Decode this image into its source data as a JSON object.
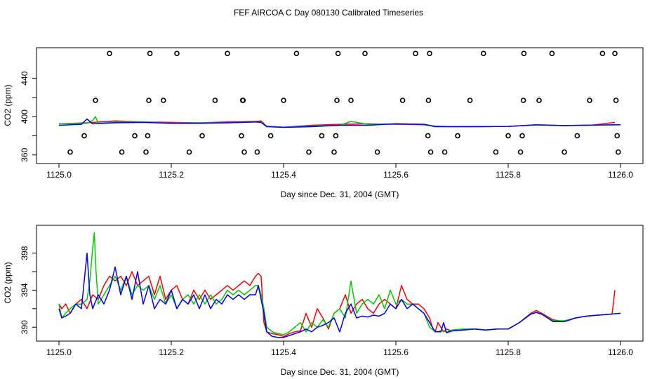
{
  "figure_title": "FEF AIRCOA C  Day 080130  Calibrated Timeseries",
  "chart_data": [
    {
      "type": "scatter+line",
      "xlabel": "Day since Dec. 31, 2004 (GMT)",
      "ylabel": "CO2 (ppm)",
      "xlim": [
        1124.96,
        1126.04
      ],
      "ylim": [
        351,
        472
      ],
      "xticks": [
        1125.0,
        1125.2,
        1125.4,
        1125.6,
        1125.8,
        1126.0
      ],
      "xtick_labels": [
        "1125.0",
        "1125.2",
        "1125.4",
        "1125.6",
        "1125.8",
        "1126.0"
      ],
      "yticks": [
        360,
        380,
        400,
        420,
        440
      ],
      "ytick_labels": [
        "360",
        "400",
        "440"
      ],
      "ytick_label_values": [
        360,
        400,
        440
      ],
      "point_series": {
        "name": "calibration points",
        "marker": "open-circle",
        "x": [
          1125.02,
          1125.045,
          1125.065,
          1125.09,
          1125.112,
          1125.135,
          1125.155,
          1125.158,
          1125.16,
          1125.162,
          1125.186,
          1125.21,
          1125.232,
          1125.255,
          1125.278,
          1125.3,
          1125.325,
          1125.327,
          1125.328,
          1125.33,
          1125.353,
          1125.377,
          1125.4,
          1125.423,
          1125.445,
          1125.468,
          1125.49,
          1125.493,
          1125.495,
          1125.497,
          1125.52,
          1125.545,
          1125.567,
          1125.612,
          1125.635,
          1125.657,
          1125.658,
          1125.66,
          1125.662,
          1125.687,
          1125.71,
          1125.732,
          1125.756,
          1125.778,
          1125.8,
          1125.822,
          1125.825,
          1125.827,
          1125.828,
          1125.855,
          1125.878,
          1125.9,
          1125.923,
          1125.945,
          1125.968,
          1125.99,
          1125.992,
          1125.994,
          1125.996
        ],
        "y": [
          363,
          380,
          417,
          466,
          363,
          380,
          363,
          380,
          417,
          466,
          417,
          466,
          363,
          380,
          417,
          466,
          380,
          417,
          417,
          363,
          363,
          380,
          417,
          466,
          363,
          380,
          363,
          380,
          417,
          466,
          417,
          466,
          363,
          417,
          466,
          380,
          417,
          466,
          363,
          363,
          380,
          417,
          466,
          363,
          380,
          363,
          380,
          417,
          466,
          417,
          466,
          363,
          380,
          417,
          466,
          466,
          417,
          380,
          363
        ]
      },
      "line_series": [
        {
          "name": "red",
          "color": "#ff0000",
          "x": [
            1125.0,
            1125.05,
            1125.1,
            1125.15,
            1125.2,
            1125.25,
            1125.3,
            1125.35,
            1125.36,
            1125.37,
            1125.4,
            1125.45,
            1125.5,
            1125.55,
            1125.6,
            1125.65,
            1125.67,
            1125.7,
            1125.75,
            1125.8,
            1125.85,
            1125.9,
            1125.95,
            1125.99
          ],
          "y": [
            392.5,
            393.5,
            395.5,
            394.5,
            394,
            393.5,
            394.5,
            395,
            395.5,
            390,
            389,
            391,
            392,
            392.5,
            392,
            391.5,
            390,
            389.5,
            389.5,
            389.8,
            391.5,
            390.5,
            391.2,
            394
          ]
        },
        {
          "name": "green",
          "color": "#00cc00",
          "x": [
            1125.0,
            1125.05,
            1125.06,
            1125.065,
            1125.07,
            1125.1,
            1125.15,
            1125.2,
            1125.25,
            1125.3,
            1125.35,
            1125.36,
            1125.37,
            1125.4,
            1125.45,
            1125.5,
            1125.52,
            1125.55,
            1125.6,
            1125.65,
            1125.67,
            1125.7,
            1125.75,
            1125.8,
            1125.85,
            1125.9,
            1125.95,
            1126.0
          ],
          "y": [
            392.5,
            393,
            396,
            400,
            393,
            394.5,
            394.5,
            393,
            393.5,
            393.5,
            394.5,
            394.5,
            390,
            389,
            390,
            391,
            395,
            392,
            392.5,
            392,
            390,
            389.5,
            389.6,
            389.8,
            391.5,
            390.7,
            391.2,
            391.5
          ]
        },
        {
          "name": "blue",
          "color": "#0000ff",
          "x": [
            1125.0,
            1125.04,
            1125.05,
            1125.06,
            1125.1,
            1125.15,
            1125.2,
            1125.25,
            1125.3,
            1125.35,
            1125.36,
            1125.37,
            1125.4,
            1125.45,
            1125.5,
            1125.55,
            1125.6,
            1125.65,
            1125.67,
            1125.7,
            1125.75,
            1125.8,
            1125.85,
            1125.9,
            1125.95,
            1126.0
          ],
          "y": [
            391,
            392,
            397.5,
            392.5,
            393.5,
            394,
            393,
            393,
            393.5,
            394.5,
            394,
            389.5,
            388.8,
            389.5,
            391,
            391,
            392.5,
            392,
            389.5,
            389.5,
            389.6,
            389.8,
            391.4,
            390.6,
            391.1,
            391.5
          ]
        }
      ]
    },
    {
      "type": "line",
      "xlabel": "Day since Dec. 31, 2004 (GMT)",
      "ylabel": "CO2 (ppm)",
      "xlim": [
        1124.96,
        1126.04
      ],
      "ylim": [
        388.5,
        401
      ],
      "xticks": [
        1125.0,
        1125.2,
        1125.4,
        1125.6,
        1125.8,
        1126.0
      ],
      "xtick_labels": [
        "1125.0",
        "1125.2",
        "1125.4",
        "1125.6",
        "1125.8",
        "1126.0"
      ],
      "yticks": [
        390,
        392,
        394,
        396,
        398
      ],
      "ytick_labels": [
        "390",
        "394",
        "398"
      ],
      "ytick_label_values": [
        390,
        394,
        398
      ],
      "series": [
        {
          "name": "red",
          "color": "#ff0000",
          "x": [
            1125.0,
            1125.005,
            1125.012,
            1125.02,
            1125.03,
            1125.04,
            1125.05,
            1125.06,
            1125.07,
            1125.08,
            1125.09,
            1125.1,
            1125.11,
            1125.12,
            1125.13,
            1125.14,
            1125.15,
            1125.16,
            1125.17,
            1125.18,
            1125.19,
            1125.2,
            1125.21,
            1125.22,
            1125.23,
            1125.24,
            1125.25,
            1125.26,
            1125.27,
            1125.28,
            1125.29,
            1125.3,
            1125.31,
            1125.32,
            1125.33,
            1125.34,
            1125.35,
            1125.355,
            1125.36,
            1125.365,
            1125.37,
            1125.38,
            1125.39,
            1125.4,
            1125.41,
            1125.42,
            1125.43,
            1125.44,
            1125.45,
            1125.46,
            1125.47,
            1125.48,
            1125.49,
            1125.5,
            1125.51,
            1125.52,
            1125.53,
            1125.54,
            1125.55,
            1125.56,
            1125.57,
            1125.58,
            1125.59,
            1125.6,
            1125.61,
            1125.62,
            1125.63,
            1125.64,
            1125.65,
            1125.66,
            1125.665,
            1125.67,
            1125.675,
            1125.68,
            1125.685,
            1125.69,
            1125.7,
            1125.72,
            1125.74,
            1125.76,
            1125.78,
            1125.8,
            1125.82,
            1125.84,
            1125.85,
            1125.86,
            1125.88,
            1125.9,
            1125.92,
            1125.94,
            1125.96,
            1125.98,
            1125.985,
            1125.99
          ],
          "y": [
            392.5,
            392,
            392.5,
            391.5,
            392.5,
            393,
            392,
            393.5,
            393,
            394.5,
            395.5,
            395,
            395.5,
            394.5,
            396,
            394.5,
            395,
            395.5,
            393.5,
            395.5,
            393,
            394,
            394.5,
            393,
            392.5,
            394,
            393,
            394,
            393,
            393.5,
            394,
            394.5,
            394,
            394.5,
            395,
            394.5,
            395.5,
            395.8,
            395.5,
            390.5,
            389.5,
            389.3,
            389.2,
            389,
            389.3,
            389.5,
            389.6,
            391.5,
            390,
            392,
            391,
            389.8,
            391.5,
            392,
            393.5,
            391.5,
            392.5,
            393,
            392,
            391.5,
            392.5,
            393,
            392.5,
            392,
            394.5,
            393,
            392.5,
            392.5,
            392,
            391,
            390,
            389.5,
            390.5,
            390,
            389.5,
            389.8,
            389.6,
            389.7,
            389.8,
            389.7,
            389.8,
            389.8,
            390.5,
            391.5,
            391.8,
            391.5,
            390.8,
            390.6,
            391,
            391.2,
            391.3,
            391.4,
            391.4,
            394
          ]
        },
        {
          "name": "green",
          "color": "#00cc00",
          "x": [
            1125.0,
            1125.005,
            1125.012,
            1125.02,
            1125.03,
            1125.04,
            1125.05,
            1125.055,
            1125.06,
            1125.063,
            1125.066,
            1125.07,
            1125.08,
            1125.09,
            1125.1,
            1125.11,
            1125.12,
            1125.13,
            1125.14,
            1125.15,
            1125.16,
            1125.17,
            1125.18,
            1125.19,
            1125.2,
            1125.21,
            1125.22,
            1125.23,
            1125.24,
            1125.25,
            1125.26,
            1125.27,
            1125.28,
            1125.29,
            1125.3,
            1125.31,
            1125.32,
            1125.33,
            1125.34,
            1125.35,
            1125.355,
            1125.36,
            1125.365,
            1125.37,
            1125.38,
            1125.39,
            1125.4,
            1125.41,
            1125.42,
            1125.43,
            1125.44,
            1125.45,
            1125.46,
            1125.47,
            1125.48,
            1125.49,
            1125.5,
            1125.51,
            1125.52,
            1125.53,
            1125.54,
            1125.55,
            1125.56,
            1125.57,
            1125.58,
            1125.59,
            1125.6,
            1125.61,
            1125.62,
            1125.63,
            1125.64,
            1125.65,
            1125.66,
            1125.67,
            1125.68,
            1125.69,
            1125.7,
            1125.72,
            1125.74,
            1125.76,
            1125.78,
            1125.8,
            1125.82,
            1125.84,
            1125.85,
            1125.86,
            1125.88,
            1125.9,
            1125.92,
            1125.94,
            1125.96,
            1125.98,
            1126.0
          ],
          "y": [
            392.5,
            391,
            391.5,
            392,
            392.5,
            392.5,
            393,
            395,
            398.5,
            400.2,
            396,
            392.5,
            393.5,
            394.5,
            395.5,
            394,
            395.5,
            393.5,
            394.5,
            394,
            394.5,
            393,
            394.5,
            392.5,
            393.5,
            392,
            393,
            393.5,
            392.5,
            393.5,
            392.5,
            393.5,
            392.5,
            393,
            394,
            393.5,
            394,
            393.5,
            394,
            394.5,
            394.5,
            393.5,
            392,
            390,
            389.5,
            389.3,
            389.2,
            389.5,
            390,
            390.5,
            389.5,
            390.5,
            390,
            390.8,
            390,
            391.5,
            392,
            391,
            395,
            391.5,
            392.5,
            393,
            392.5,
            393.5,
            392,
            394,
            392.5,
            393,
            392.5,
            392.5,
            392,
            391.5,
            390,
            389.5,
            389.6,
            389.5,
            389.7,
            389.8,
            389.8,
            389.7,
            389.8,
            389.8,
            390.5,
            391.4,
            391.6,
            391.4,
            390.7,
            390.7,
            391,
            391.2,
            391.3,
            391.4,
            391.5
          ]
        },
        {
          "name": "blue",
          "color": "#0000ff",
          "x": [
            1125.0,
            1125.005,
            1125.012,
            1125.02,
            1125.03,
            1125.04,
            1125.045,
            1125.05,
            1125.055,
            1125.06,
            1125.07,
            1125.08,
            1125.09,
            1125.1,
            1125.11,
            1125.12,
            1125.13,
            1125.14,
            1125.15,
            1125.16,
            1125.17,
            1125.18,
            1125.19,
            1125.2,
            1125.21,
            1125.22,
            1125.23,
            1125.24,
            1125.25,
            1125.26,
            1125.27,
            1125.28,
            1125.29,
            1125.3,
            1125.31,
            1125.32,
            1125.33,
            1125.34,
            1125.35,
            1125.355,
            1125.36,
            1125.365,
            1125.37,
            1125.38,
            1125.39,
            1125.4,
            1125.41,
            1125.42,
            1125.43,
            1125.44,
            1125.45,
            1125.46,
            1125.47,
            1125.48,
            1125.49,
            1125.5,
            1125.51,
            1125.52,
            1125.53,
            1125.54,
            1125.55,
            1125.56,
            1125.57,
            1125.58,
            1125.59,
            1125.6,
            1125.61,
            1125.62,
            1125.63,
            1125.64,
            1125.65,
            1125.66,
            1125.67,
            1125.68,
            1125.685,
            1125.69,
            1125.7,
            1125.72,
            1125.74,
            1125.76,
            1125.78,
            1125.8,
            1125.82,
            1125.84,
            1125.85,
            1125.86,
            1125.88,
            1125.9,
            1125.92,
            1125.94,
            1125.96,
            1125.98,
            1126.0
          ],
          "y": [
            392,
            391,
            391.2,
            391.5,
            392.5,
            392,
            395,
            398,
            393.5,
            392,
            393.5,
            392.5,
            394,
            396.5,
            393.5,
            395.5,
            393,
            396,
            392.5,
            394.5,
            392,
            393,
            392.5,
            394,
            392,
            393,
            392.5,
            393.5,
            392,
            393.5,
            392,
            393,
            392.5,
            393.5,
            393,
            393.5,
            393,
            393.5,
            393.5,
            394.5,
            393,
            391.5,
            389.5,
            389,
            388.9,
            388.9,
            389.1,
            389.3,
            389.5,
            389.8,
            389.5,
            390,
            390.2,
            390.5,
            391,
            389.5,
            391.5,
            392.5,
            391,
            391.2,
            391.1,
            391.3,
            391.2,
            391.5,
            392.5,
            392,
            393,
            392,
            392.5,
            392,
            391.5,
            390.5,
            389.5,
            389.5,
            390.5,
            389.4,
            389.6,
            389.7,
            389.8,
            389.7,
            389.8,
            389.8,
            390.5,
            391.4,
            391.6,
            391.4,
            390.6,
            390.6,
            391,
            391.2,
            391.3,
            391.4,
            391.5
          ]
        }
      ]
    }
  ]
}
